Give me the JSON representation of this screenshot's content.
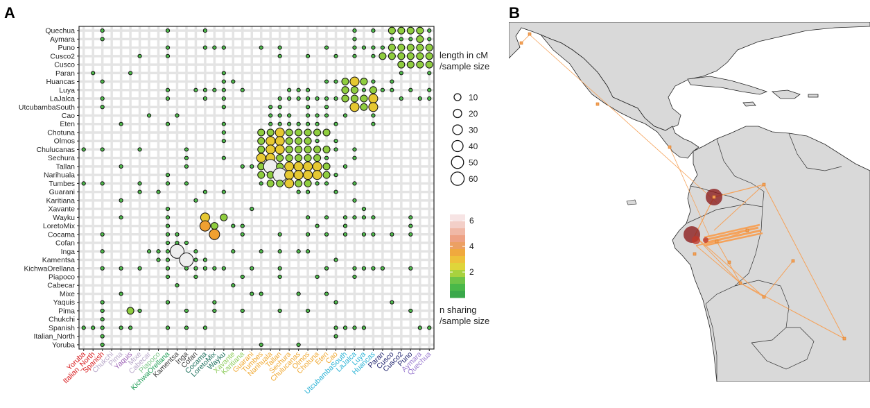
{
  "panels": {
    "a_label": "A",
    "b_label": "B"
  },
  "chart_data": {
    "type": "scatter",
    "subtype": "bubble-matrix",
    "title": "",
    "populations": [
      "Quechua",
      "Aymara",
      "Puno",
      "Cusco2",
      "Cusco",
      "Paran",
      "Huancas",
      "Luya",
      "LaJalca",
      "UtcubambaSouth",
      "Cao",
      "Eten",
      "Chotuna",
      "Olmos",
      "Chulucanas",
      "Sechura",
      "Tallan",
      "Narihuala",
      "Tumbes",
      "Guarani",
      "Karitiana",
      "Xavante",
      "Wayku",
      "LoretoMix",
      "Cocama",
      "Cofan",
      "Inga",
      "Kamentsa",
      "KichwaOrellana",
      "Piapoco",
      "Cabecar",
      "Mixe",
      "Yaquis",
      "Pima",
      "Chukchi",
      "Spanish",
      "Italian_North",
      "Yoruba"
    ],
    "x_label_colors": [
      "#d7191c",
      "#d7191c",
      "#d7191c",
      "#b8a7c9",
      "#b8a7c9",
      "#9b5fb5",
      "#b8a7c9",
      "#b8a7c9",
      "#7ec88a",
      "#1f9d55",
      "#3b3b3b",
      "#3b3b3b",
      "#3b3b3b",
      "#1a6e5a",
      "#1a6e5a",
      "#1a6e5a",
      "#8fcd5e",
      "#8fcd5e",
      "#f0a830",
      "#f0a830",
      "#f0a830",
      "#f0a830",
      "#f0a830",
      "#f0a830",
      "#f0a830",
      "#f0a830",
      "#f0a830",
      "#f0a830",
      "#2bb3d6",
      "#2bb3d6",
      "#2bb3d6",
      "#2bb3d6",
      "#1b1f6b",
      "#1b1f6b",
      "#1b1f6b",
      "#1b1f6b",
      "#9a7bd0",
      "#9a7bd0"
    ],
    "cells": [
      [
        0,
        2,
        1
      ],
      [
        0,
        9,
        1
      ],
      [
        0,
        13,
        1
      ],
      [
        0,
        29,
        1
      ],
      [
        0,
        31,
        1
      ],
      [
        0,
        33,
        2
      ],
      [
        0,
        34,
        2
      ],
      [
        0,
        35,
        2
      ],
      [
        0,
        36,
        2
      ],
      [
        0,
        37,
        1
      ],
      [
        1,
        2,
        1
      ],
      [
        1,
        29,
        1
      ],
      [
        1,
        33,
        1
      ],
      [
        1,
        34,
        1
      ],
      [
        1,
        35,
        1
      ],
      [
        1,
        36,
        2
      ],
      [
        1,
        37,
        1
      ],
      [
        2,
        9,
        1
      ],
      [
        2,
        13,
        1
      ],
      [
        2,
        14,
        1
      ],
      [
        2,
        15,
        1
      ],
      [
        2,
        19,
        1
      ],
      [
        2,
        21,
        1
      ],
      [
        2,
        26,
        1
      ],
      [
        2,
        29,
        1
      ],
      [
        2,
        30,
        1
      ],
      [
        2,
        31,
        1
      ],
      [
        2,
        32,
        1
      ],
      [
        2,
        33,
        2
      ],
      [
        2,
        34,
        2
      ],
      [
        2,
        35,
        2
      ],
      [
        2,
        36,
        2
      ],
      [
        2,
        37,
        2
      ],
      [
        3,
        6,
        1
      ],
      [
        3,
        9,
        1
      ],
      [
        3,
        21,
        1
      ],
      [
        3,
        24,
        1
      ],
      [
        3,
        27,
        1
      ],
      [
        3,
        29,
        1
      ],
      [
        3,
        31,
        1
      ],
      [
        3,
        32,
        2
      ],
      [
        3,
        33,
        2
      ],
      [
        3,
        34,
        2
      ],
      [
        3,
        35,
        2
      ],
      [
        3,
        36,
        2
      ],
      [
        3,
        37,
        2
      ],
      [
        4,
        34,
        2
      ],
      [
        4,
        35,
        2
      ],
      [
        4,
        36,
        2
      ],
      [
        4,
        37,
        2
      ],
      [
        5,
        1,
        1
      ],
      [
        5,
        5,
        1
      ],
      [
        5,
        15,
        1
      ],
      [
        5,
        34,
        1
      ],
      [
        5,
        37,
        1
      ],
      [
        6,
        2,
        1
      ],
      [
        6,
        15,
        1
      ],
      [
        6,
        16,
        1
      ],
      [
        6,
        26,
        1
      ],
      [
        6,
        27,
        1
      ],
      [
        6,
        28,
        2
      ],
      [
        6,
        29,
        3
      ],
      [
        6,
        30,
        2
      ],
      [
        6,
        31,
        1
      ],
      [
        6,
        33,
        1
      ],
      [
        7,
        9,
        1
      ],
      [
        7,
        12,
        1
      ],
      [
        7,
        13,
        1
      ],
      [
        7,
        14,
        1
      ],
      [
        7,
        15,
        1
      ],
      [
        7,
        17,
        1
      ],
      [
        7,
        22,
        1
      ],
      [
        7,
        23,
        1
      ],
      [
        7,
        24,
        1
      ],
      [
        7,
        28,
        2
      ],
      [
        7,
        29,
        2
      ],
      [
        7,
        30,
        1
      ],
      [
        7,
        31,
        2
      ],
      [
        7,
        32,
        1
      ],
      [
        7,
        33,
        1
      ],
      [
        7,
        35,
        1
      ],
      [
        7,
        37,
        1
      ],
      [
        8,
        2,
        1
      ],
      [
        8,
        9,
        1
      ],
      [
        8,
        13,
        1
      ],
      [
        8,
        15,
        1
      ],
      [
        8,
        21,
        1
      ],
      [
        8,
        22,
        1
      ],
      [
        8,
        23,
        1
      ],
      [
        8,
        24,
        1
      ],
      [
        8,
        25,
        1
      ],
      [
        8,
        26,
        1
      ],
      [
        8,
        27,
        1
      ],
      [
        8,
        28,
        2
      ],
      [
        8,
        29,
        2
      ],
      [
        8,
        30,
        2
      ],
      [
        8,
        31,
        3
      ],
      [
        8,
        34,
        1
      ],
      [
        8,
        36,
        1
      ],
      [
        8,
        37,
        1
      ],
      [
        9,
        2,
        1
      ],
      [
        9,
        15,
        1
      ],
      [
        9,
        20,
        1
      ],
      [
        9,
        21,
        1
      ],
      [
        9,
        24,
        1
      ],
      [
        9,
        26,
        1
      ],
      [
        9,
        29,
        3
      ],
      [
        9,
        30,
        2
      ],
      [
        9,
        31,
        3
      ],
      [
        10,
        7,
        1
      ],
      [
        10,
        10,
        1
      ],
      [
        10,
        20,
        1
      ],
      [
        10,
        21,
        1
      ],
      [
        10,
        22,
        1
      ],
      [
        10,
        24,
        1
      ],
      [
        10,
        25,
        1
      ],
      [
        10,
        26,
        1
      ],
      [
        10,
        28,
        1
      ],
      [
        10,
        31,
        1
      ],
      [
        11,
        4,
        1
      ],
      [
        11,
        9,
        1
      ],
      [
        11,
        15,
        1
      ],
      [
        11,
        20,
        1
      ],
      [
        11,
        21,
        1
      ],
      [
        11,
        22,
        1
      ],
      [
        11,
        23,
        1
      ],
      [
        11,
        24,
        1
      ],
      [
        11,
        25,
        1
      ],
      [
        11,
        27,
        1
      ],
      [
        11,
        31,
        1
      ],
      [
        12,
        15,
        1
      ],
      [
        12,
        19,
        2
      ],
      [
        12,
        20,
        2
      ],
      [
        12,
        21,
        3
      ],
      [
        12,
        22,
        2
      ],
      [
        12,
        23,
        2
      ],
      [
        12,
        24,
        2
      ],
      [
        12,
        25,
        2
      ],
      [
        12,
        26,
        2
      ],
      [
        13,
        15,
        1
      ],
      [
        13,
        19,
        2
      ],
      [
        13,
        20,
        3
      ],
      [
        13,
        21,
        3
      ],
      [
        13,
        22,
        2
      ],
      [
        13,
        23,
        2
      ],
      [
        13,
        24,
        2
      ],
      [
        13,
        25,
        1
      ],
      [
        13,
        27,
        1
      ],
      [
        14,
        0,
        1
      ],
      [
        14,
        2,
        1
      ],
      [
        14,
        6,
        1
      ],
      [
        14,
        11,
        1
      ],
      [
        14,
        19,
        2
      ],
      [
        14,
        20,
        3
      ],
      [
        14,
        21,
        3
      ],
      [
        14,
        22,
        2
      ],
      [
        14,
        23,
        2
      ],
      [
        14,
        24,
        2
      ],
      [
        14,
        25,
        2
      ],
      [
        14,
        26,
        2
      ],
      [
        14,
        27,
        1
      ],
      [
        14,
        29,
        1
      ],
      [
        15,
        11,
        1
      ],
      [
        15,
        15,
        1
      ],
      [
        15,
        19,
        3
      ],
      [
        15,
        20,
        3
      ],
      [
        15,
        21,
        2
      ],
      [
        15,
        22,
        2
      ],
      [
        15,
        23,
        2
      ],
      [
        15,
        24,
        2
      ],
      [
        15,
        25,
        2
      ],
      [
        15,
        26,
        1
      ],
      [
        15,
        29,
        1
      ],
      [
        16,
        4,
        1
      ],
      [
        16,
        11,
        1
      ],
      [
        16,
        17,
        1
      ],
      [
        16,
        18,
        1
      ],
      [
        16,
        19,
        2
      ],
      [
        16,
        20,
        5
      ],
      [
        16,
        21,
        2
      ],
      [
        16,
        22,
        3
      ],
      [
        16,
        23,
        3
      ],
      [
        16,
        24,
        3
      ],
      [
        16,
        25,
        3
      ],
      [
        16,
        26,
        2
      ],
      [
        16,
        28,
        1
      ],
      [
        17,
        9,
        1
      ],
      [
        17,
        19,
        2
      ],
      [
        17,
        20,
        2
      ],
      [
        17,
        21,
        5
      ],
      [
        17,
        22,
        3
      ],
      [
        17,
        23,
        3
      ],
      [
        17,
        24,
        3
      ],
      [
        17,
        25,
        3
      ],
      [
        17,
        26,
        2
      ],
      [
        17,
        27,
        1
      ],
      [
        18,
        0,
        1
      ],
      [
        18,
        2,
        1
      ],
      [
        18,
        6,
        1
      ],
      [
        18,
        9,
        1
      ],
      [
        18,
        11,
        1
      ],
      [
        18,
        19,
        1
      ],
      [
        18,
        20,
        2
      ],
      [
        18,
        21,
        2
      ],
      [
        18,
        22,
        3
      ],
      [
        18,
        23,
        2
      ],
      [
        18,
        24,
        2
      ],
      [
        18,
        25,
        1
      ],
      [
        18,
        26,
        1
      ],
      [
        18,
        29,
        1
      ],
      [
        19,
        6,
        1
      ],
      [
        19,
        8,
        1
      ],
      [
        19,
        13,
        1
      ],
      [
        19,
        15,
        1
      ],
      [
        19,
        23,
        1
      ],
      [
        19,
        24,
        1
      ],
      [
        19,
        27,
        1
      ],
      [
        20,
        4,
        1
      ],
      [
        20,
        12,
        1
      ],
      [
        20,
        29,
        1
      ],
      [
        21,
        9,
        1
      ],
      [
        21,
        18,
        1
      ],
      [
        21,
        30,
        1
      ],
      [
        22,
        4,
        1
      ],
      [
        22,
        9,
        1
      ],
      [
        22,
        13,
        3
      ],
      [
        22,
        15,
        2
      ],
      [
        22,
        24,
        1
      ],
      [
        22,
        26,
        1
      ],
      [
        22,
        28,
        1
      ],
      [
        22,
        29,
        1
      ],
      [
        22,
        30,
        1
      ],
      [
        22,
        31,
        1
      ],
      [
        22,
        35,
        1
      ],
      [
        23,
        9,
        1
      ],
      [
        23,
        13,
        4
      ],
      [
        23,
        14,
        2
      ],
      [
        23,
        16,
        1
      ],
      [
        23,
        17,
        1
      ],
      [
        23,
        25,
        1
      ],
      [
        23,
        28,
        1
      ],
      [
        23,
        35,
        1
      ],
      [
        24,
        2,
        1
      ],
      [
        24,
        9,
        1
      ],
      [
        24,
        10,
        1
      ],
      [
        24,
        14,
        4
      ],
      [
        24,
        17,
        1
      ],
      [
        24,
        21,
        1
      ],
      [
        24,
        24,
        1
      ],
      [
        24,
        26,
        1
      ],
      [
        24,
        28,
        1
      ],
      [
        24,
        30,
        1
      ],
      [
        24,
        31,
        1
      ],
      [
        24,
        33,
        1
      ],
      [
        24,
        35,
        1
      ],
      [
        25,
        9,
        1
      ],
      [
        25,
        10,
        1
      ],
      [
        25,
        11,
        1
      ],
      [
        26,
        2,
        1
      ],
      [
        26,
        7,
        1
      ],
      [
        26,
        8,
        1
      ],
      [
        26,
        9,
        1
      ],
      [
        26,
        10,
        5
      ],
      [
        26,
        12,
        1
      ],
      [
        26,
        16,
        1
      ],
      [
        26,
        19,
        1
      ],
      [
        26,
        21,
        1
      ],
      [
        26,
        23,
        1
      ],
      [
        26,
        24,
        1
      ],
      [
        27,
        8,
        1
      ],
      [
        27,
        9,
        1
      ],
      [
        27,
        11,
        5
      ],
      [
        27,
        12,
        1
      ],
      [
        27,
        13,
        1
      ],
      [
        27,
        27,
        1
      ],
      [
        28,
        2,
        1
      ],
      [
        28,
        4,
        1
      ],
      [
        28,
        6,
        1
      ],
      [
        28,
        9,
        1
      ],
      [
        28,
        11,
        1
      ],
      [
        28,
        12,
        1
      ],
      [
        28,
        13,
        1
      ],
      [
        28,
        14,
        1
      ],
      [
        28,
        15,
        1
      ],
      [
        28,
        18,
        1
      ],
      [
        28,
        21,
        1
      ],
      [
        28,
        26,
        1
      ],
      [
        28,
        29,
        1
      ],
      [
        28,
        30,
        1
      ],
      [
        28,
        31,
        1
      ],
      [
        28,
        32,
        1
      ],
      [
        28,
        35,
        1
      ],
      [
        29,
        9,
        1
      ],
      [
        29,
        12,
        1
      ],
      [
        29,
        17,
        1
      ],
      [
        29,
        21,
        1
      ],
      [
        29,
        25,
        1
      ],
      [
        29,
        29,
        1
      ],
      [
        30,
        10,
        1
      ],
      [
        30,
        16,
        1
      ],
      [
        31,
        4,
        1
      ],
      [
        31,
        18,
        1
      ],
      [
        31,
        19,
        1
      ],
      [
        31,
        23,
        1
      ],
      [
        31,
        26,
        1
      ],
      [
        32,
        2,
        1
      ],
      [
        32,
        9,
        1
      ],
      [
        32,
        14,
        1
      ],
      [
        32,
        27,
        1
      ],
      [
        32,
        33,
        1
      ],
      [
        33,
        2,
        1
      ],
      [
        33,
        5,
        2
      ],
      [
        33,
        6,
        1
      ],
      [
        33,
        11,
        1
      ],
      [
        33,
        14,
        1
      ],
      [
        33,
        17,
        1
      ],
      [
        33,
        21,
        1
      ],
      [
        33,
        24,
        1
      ],
      [
        33,
        35,
        1
      ],
      [
        34,
        2,
        1
      ],
      [
        35,
        0,
        1
      ],
      [
        35,
        1,
        1
      ],
      [
        35,
        2,
        1
      ],
      [
        35,
        4,
        1
      ],
      [
        35,
        5,
        1
      ],
      [
        35,
        9,
        1
      ],
      [
        35,
        11,
        1
      ],
      [
        35,
        13,
        1
      ],
      [
        35,
        27,
        1
      ],
      [
        35,
        28,
        1
      ],
      [
        35,
        29,
        1
      ],
      [
        35,
        30,
        1
      ],
      [
        35,
        36,
        1
      ],
      [
        35,
        37,
        1
      ],
      [
        36,
        2,
        1
      ],
      [
        36,
        27,
        1
      ],
      [
        37,
        2,
        1
      ],
      [
        37,
        19,
        1
      ],
      [
        37,
        23,
        1
      ]
    ],
    "size_legend": {
      "title": "length in cM\n/sample size",
      "values": [
        10,
        20,
        30,
        40,
        50,
        60
      ]
    },
    "color_legend": {
      "title": "n sharing\n/sample size",
      "ticks": [
        2,
        4,
        6
      ],
      "range": [
        0,
        6.5
      ]
    },
    "grid": true
  },
  "map": {
    "arrow_a": [
      350,
      268
    ],
    "arrow_b": [
      290,
      312
    ]
  }
}
